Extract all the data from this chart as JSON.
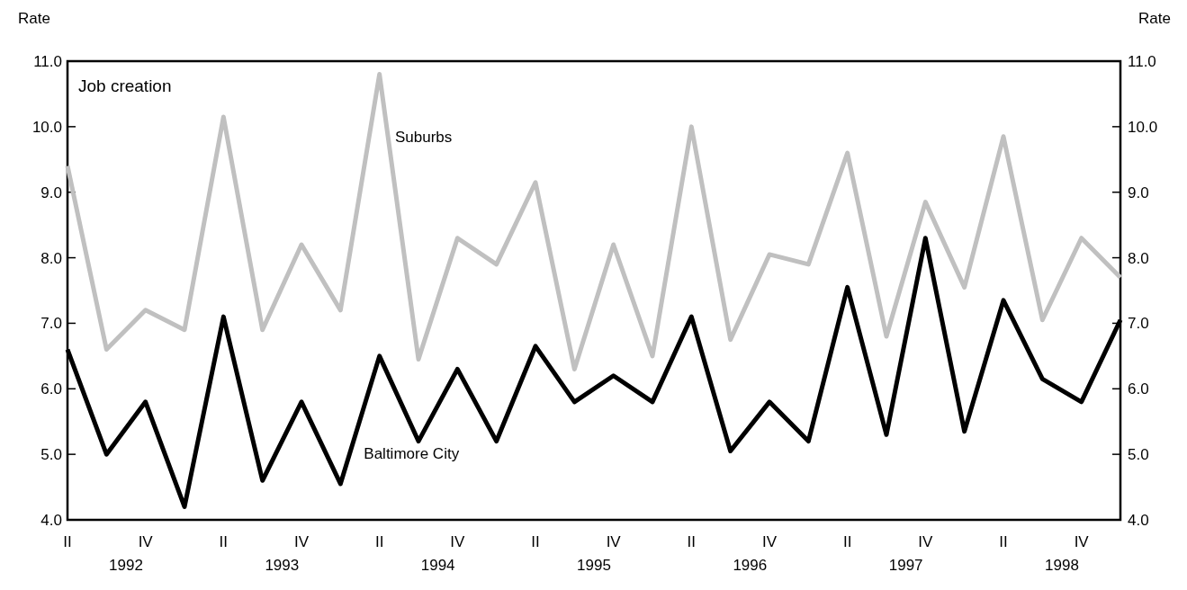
{
  "chart_data": {
    "type": "line",
    "title": "Job creation",
    "ylabel": "Rate",
    "y2label": "Rate",
    "categories": [
      "II",
      null,
      "IV",
      null,
      "II",
      null,
      "IV",
      null,
      "II",
      null,
      "IV",
      null,
      "II",
      null,
      "IV",
      null,
      "II",
      null,
      "IV",
      null,
      "II",
      null,
      "IV",
      null,
      "II",
      null,
      "IV",
      null
    ],
    "annotations": [
      "1992",
      "1993",
      "1994",
      "1995",
      "1996",
      "1997",
      "1998"
    ],
    "series": [
      {
        "name": "Suburbs",
        "color": "#c0c0c0",
        "values": [
          9.4,
          6.6,
          7.2,
          6.9,
          10.15,
          6.9,
          8.2,
          7.2,
          10.8,
          6.45,
          8.3,
          7.9,
          9.15,
          6.3,
          8.2,
          6.5,
          10.0,
          6.75,
          8.05,
          7.9,
          9.6,
          6.8,
          8.85,
          7.55,
          9.85,
          7.05,
          8.3,
          7.7
        ]
      },
      {
        "name": "Baltimore City",
        "color": "#000000",
        "values": [
          6.6,
          5.0,
          5.8,
          4.2,
          7.1,
          4.6,
          5.8,
          4.55,
          6.5,
          5.2,
          6.3,
          5.2,
          6.65,
          5.8,
          6.2,
          5.8,
          7.1,
          5.05,
          5.8,
          5.2,
          7.55,
          5.3,
          8.3,
          5.35,
          7.35,
          6.15,
          5.8,
          7.05
        ]
      }
    ],
    "ylim": [
      4,
      11
    ],
    "yticks": [
      {
        "value": 4,
        "label": "4.0"
      },
      {
        "value": 5,
        "label": "5.0"
      },
      {
        "value": 6,
        "label": "6.0"
      },
      {
        "value": 7,
        "label": "7.0"
      },
      {
        "value": 8,
        "label": "8.0"
      },
      {
        "value": 9,
        "label": "9.0"
      },
      {
        "value": 10,
        "label": "10.0"
      },
      {
        "value": 11,
        "label": "11.0"
      }
    ],
    "y2lim": [
      4,
      11
    ],
    "y2ticks": [
      {
        "value": 4,
        "label": "4.0"
      },
      {
        "value": 5,
        "label": "5.0"
      },
      {
        "value": 6,
        "label": "6.0"
      },
      {
        "value": 7,
        "label": "7.0"
      },
      {
        "value": 8,
        "label": "8.0"
      },
      {
        "value": 9,
        "label": "9.0"
      },
      {
        "value": 10,
        "label": "10.0"
      },
      {
        "value": 11,
        "label": "11.0"
      }
    ],
    "legend": false,
    "grid": false,
    "marker": "none",
    "line_style": "solid"
  }
}
